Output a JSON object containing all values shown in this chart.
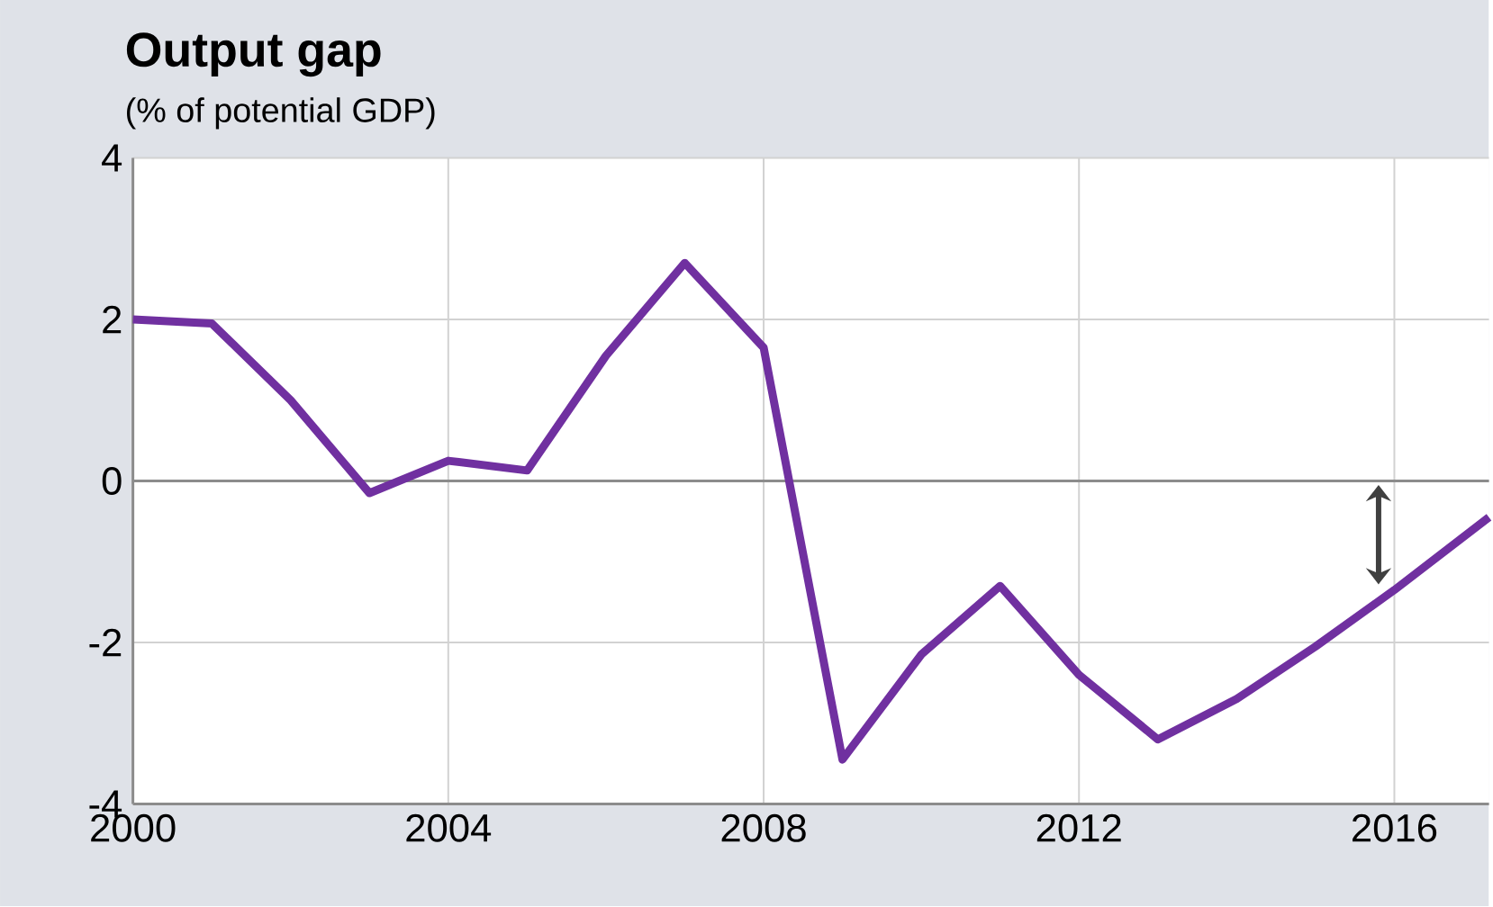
{
  "chart_data": {
    "type": "line",
    "title": "Output gap",
    "subtitle": "(% of potential GDP)",
    "x": [
      2000,
      2001,
      2002,
      2003,
      2004,
      2005,
      2006,
      2007,
      2008,
      2009,
      2010,
      2011,
      2012,
      2013,
      2014,
      2015,
      2016,
      2017.2
    ],
    "series": [
      {
        "color": "#7030a0",
        "values": [
          2.0,
          1.95,
          1.0,
          -0.15,
          0.25,
          0.13,
          1.55,
          2.7,
          1.65,
          -3.45,
          -2.15,
          -1.3,
          -2.4,
          -3.2,
          -2.7,
          -2.05,
          -1.35,
          -0.45
        ]
      }
    ],
    "xlim": [
      2000,
      2017.2
    ],
    "ylim": [
      -4,
      4
    ],
    "xticks": [
      2000,
      2004,
      2008,
      2012,
      2016
    ],
    "yticks": [
      -4,
      -2,
      0,
      2,
      4
    ],
    "grid": true,
    "marker": "none",
    "line_style": "solid",
    "ref_lines": [
      {
        "axis": "y",
        "value": 0,
        "color": "#8c8c8c"
      }
    ]
  }
}
